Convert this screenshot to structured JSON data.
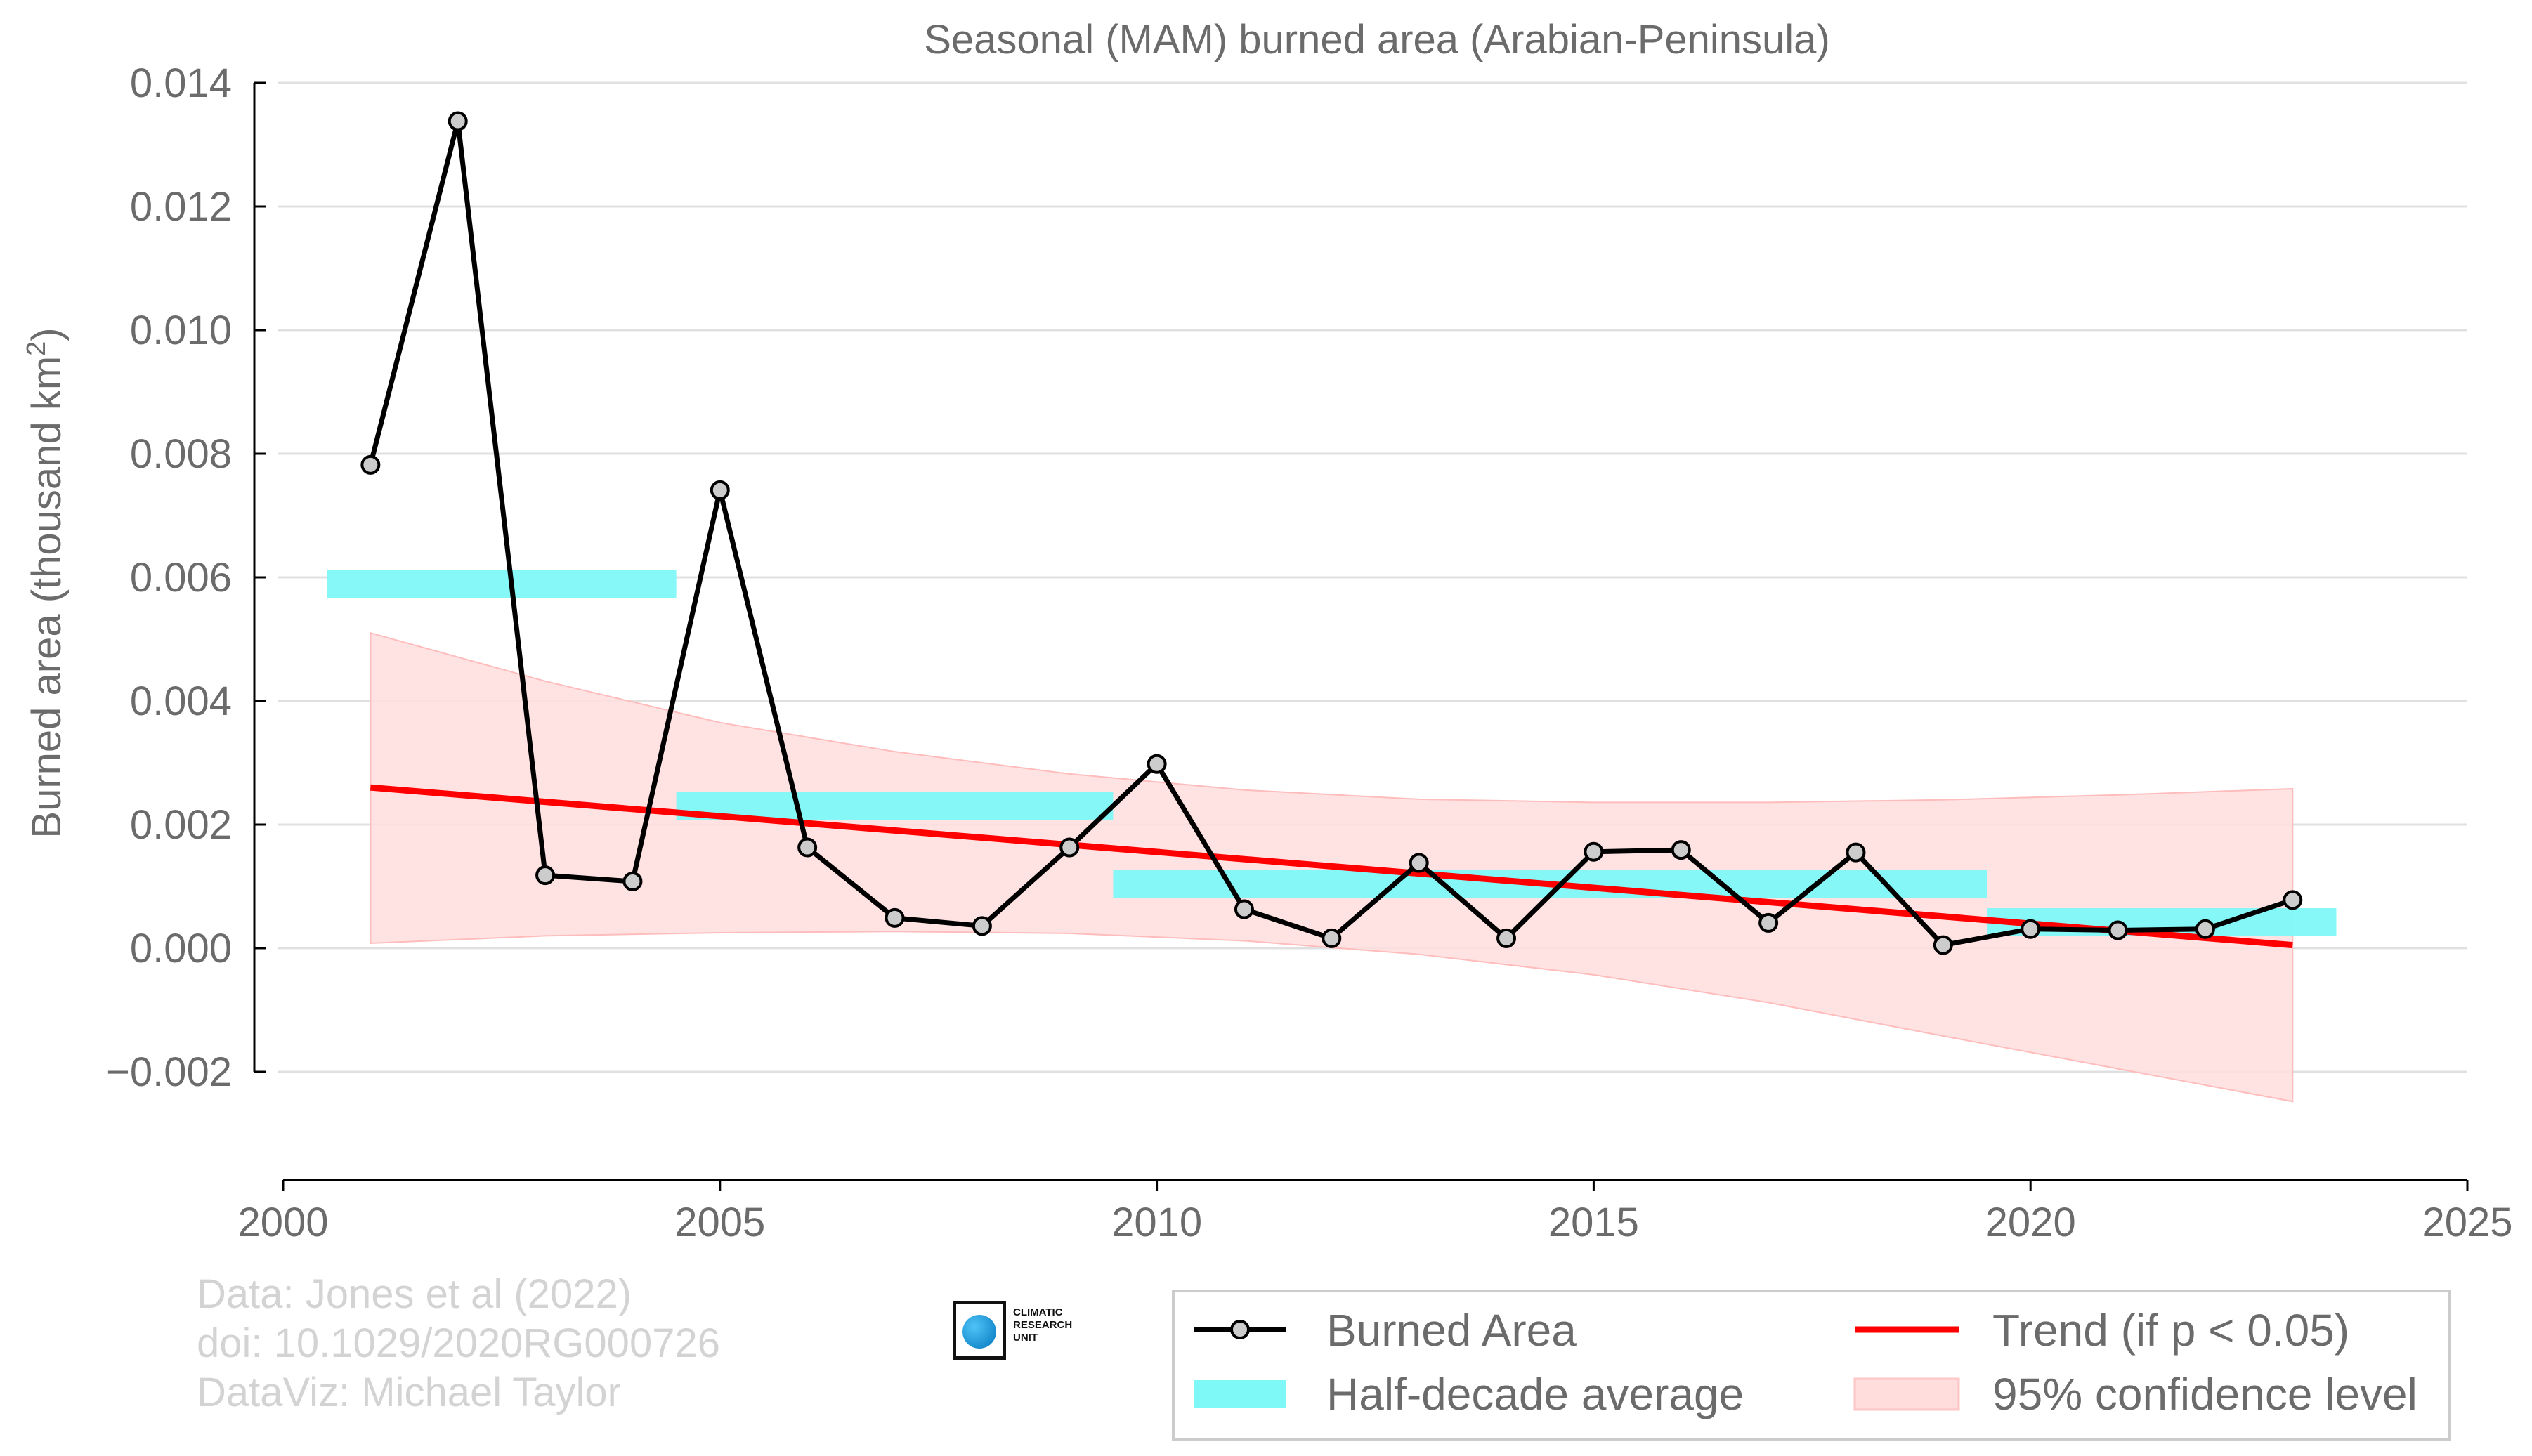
{
  "chart_data": {
    "type": "line",
    "title": "Seasonal (MAM) burned area (Arabian-Peninsula)",
    "ylabel": "Burned area (thousand km",
    "ylabel_sup": "2",
    "ylabel_close": ")",
    "xlim": [
      2000,
      2025
    ],
    "ylim": [
      -0.0033,
      0.014
    ],
    "x_ticks": [
      2000,
      2005,
      2010,
      2015,
      2020,
      2025
    ],
    "x_tick_labels": [
      "2000",
      "2005",
      "2010",
      "2015",
      "2020",
      "2025"
    ],
    "y_ticks": [
      -0.002,
      0.0,
      0.002,
      0.004,
      0.006,
      0.008,
      0.01,
      0.012,
      0.014
    ],
    "y_tick_labels": [
      "−0.002",
      "0.000",
      "0.002",
      "0.004",
      "0.006",
      "0.008",
      "0.010",
      "0.012",
      "0.014"
    ],
    "grid": true,
    "series": [
      {
        "name": "Burned Area",
        "color": "#000000",
        "marker_fill": "#cccccc",
        "x": [
          2001,
          2002,
          2003,
          2004,
          2005,
          2006,
          2007,
          2008,
          2009,
          2010,
          2011,
          2012,
          2013,
          2014,
          2015,
          2016,
          2017,
          2018,
          2019,
          2020,
          2021,
          2022,
          2023
        ],
        "y": [
          0.00782,
          0.01338,
          0.00118,
          0.00108,
          0.00741,
          0.00163,
          0.00049,
          0.00036,
          0.00163,
          0.00298,
          0.00063,
          0.00016,
          0.00138,
          0.00016,
          0.00156,
          0.00159,
          0.00041,
          0.00155,
          5e-05,
          0.00031,
          0.00029,
          0.00031,
          0.00078
        ]
      }
    ],
    "half_decade_average": {
      "name": "Half-decade average",
      "color": "#7ff8f8",
      "segments": [
        {
          "x0": 2000.5,
          "x1": 2004.5,
          "y": 0.00589
        },
        {
          "x0": 2004.5,
          "x1": 2009.5,
          "y": 0.0023
        },
        {
          "x0": 2009.5,
          "x1": 2019.5,
          "y": 0.00104
        },
        {
          "x0": 2019.5,
          "x1": 2023.5,
          "y": 0.00042
        }
      ]
    },
    "trend": {
      "name": "Trend (if p < 0.05)",
      "color": "#ff0000",
      "x": [
        2001,
        2023
      ],
      "y": [
        0.0026,
        5e-05
      ]
    },
    "confidence_band": {
      "name": "95% confidence level",
      "color": "#ffdddd",
      "x": [
        2001,
        2003,
        2005,
        2007,
        2009,
        2011,
        2013,
        2015,
        2017,
        2019,
        2021,
        2023
      ],
      "upper": [
        0.0051,
        0.00432,
        0.00365,
        0.00318,
        0.00282,
        0.00256,
        0.00241,
        0.00236,
        0.00236,
        0.0024,
        0.00248,
        0.00258
      ],
      "lower": [
        8e-05,
        0.0002,
        0.00025,
        0.00027,
        0.00024,
        0.00012,
        -0.0001,
        -0.00043,
        -0.00088,
        -0.00142,
        -0.00195,
        -0.00248
      ]
    },
    "legend_position": "bottom-right"
  },
  "credits": {
    "line1": "Data: Jones et al (2022)",
    "line2": "doi: 10.1029/2020RG000726",
    "line3": "DataViz: Michael Taylor"
  },
  "logo": {
    "line1": "CLIMATIC",
    "line2": "RESEARCH",
    "line3": "UNIT"
  }
}
